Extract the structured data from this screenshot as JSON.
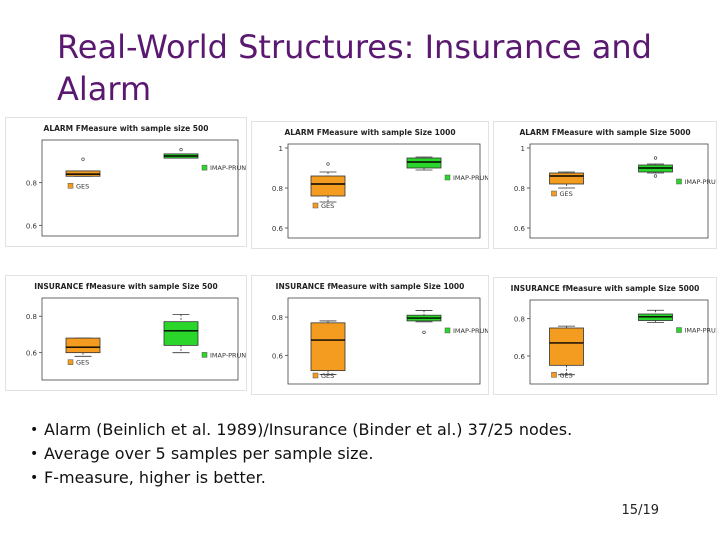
{
  "slide": {
    "title": "Real-World Structures: Insurance and Alarm",
    "bullets": [
      "Alarm (Beinlich et al. 1989)/Insurance (Binder et al.) 37/25 nodes.",
      "Average over 5 samples per sample size.",
      "F-measure, higher is better."
    ],
    "page_number": "15/19"
  },
  "colors": {
    "title": "#5a1870",
    "ges": "#f39c1f",
    "imap": "#2bd62b"
  },
  "chart_data": [
    {
      "type": "boxplot",
      "title": "ALARM FMeasure with sample size 500",
      "ytick_labels": [
        "0.8",
        "0.6"
      ],
      "ylim": [
        0.55,
        1.0
      ],
      "series": [
        {
          "name": "GES",
          "color": "#f39c1f",
          "q1": 0.83,
          "median": 0.84,
          "q3": 0.855,
          "whisker_low": 0.83,
          "whisker_high": 0.855,
          "outliers": [
            0.91
          ]
        },
        {
          "name": "IMAP-PRUNED",
          "color": "#2bd62b",
          "q1": 0.915,
          "median": 0.925,
          "q3": 0.935,
          "whisker_low": 0.915,
          "whisker_high": 0.935,
          "outliers": [
            0.955
          ]
        }
      ]
    },
    {
      "type": "boxplot",
      "title": "ALARM FMeasure with sample Size 1000",
      "ytick_labels": [
        "1",
        "0.8",
        "0.6"
      ],
      "ylim": [
        0.55,
        1.02
      ],
      "series": [
        {
          "name": "GES",
          "color": "#f39c1f",
          "q1": 0.76,
          "median": 0.82,
          "q3": 0.86,
          "whisker_low": 0.73,
          "whisker_high": 0.88,
          "outliers": [
            0.92
          ]
        },
        {
          "name": "IMAP-PRUNED",
          "color": "#2bd62b",
          "q1": 0.9,
          "median": 0.93,
          "q3": 0.95,
          "whisker_low": 0.89,
          "whisker_high": 0.955,
          "outliers": []
        }
      ]
    },
    {
      "type": "boxplot",
      "title": "ALARM FMeasure with sample Size 5000",
      "ytick_labels": [
        "1",
        "0.8",
        "0.6"
      ],
      "ylim": [
        0.55,
        1.02
      ],
      "series": [
        {
          "name": "GES",
          "color": "#f39c1f",
          "q1": 0.82,
          "median": 0.86,
          "q3": 0.875,
          "whisker_low": 0.8,
          "whisker_high": 0.88,
          "outliers": []
        },
        {
          "name": "IMAP-PRUNED",
          "color": "#2bd62b",
          "q1": 0.88,
          "median": 0.9,
          "q3": 0.915,
          "whisker_low": 0.875,
          "whisker_high": 0.92,
          "outliers": [
            0.95,
            0.86
          ]
        }
      ]
    },
    {
      "type": "boxplot",
      "title": "INSURANCE fMeasure with sample Size 500",
      "ytick_labels": [
        "0.8",
        "0.6"
      ],
      "ylim": [
        0.45,
        0.9
      ],
      "series": [
        {
          "name": "GES",
          "color": "#f39c1f",
          "q1": 0.6,
          "median": 0.63,
          "q3": 0.68,
          "whisker_low": 0.58,
          "whisker_high": 0.68,
          "outliers": []
        },
        {
          "name": "IMAP-PRUNED",
          "color": "#2bd62b",
          "q1": 0.64,
          "median": 0.72,
          "q3": 0.77,
          "whisker_low": 0.6,
          "whisker_high": 0.81,
          "outliers": []
        }
      ]
    },
    {
      "type": "boxplot",
      "title": "INSURANCE fMeasure with sample Size 1000",
      "ytick_labels": [
        "0.8",
        "0.6"
      ],
      "ylim": [
        0.45,
        0.9
      ],
      "series": [
        {
          "name": "GES",
          "color": "#f39c1f",
          "q1": 0.52,
          "median": 0.68,
          "q3": 0.77,
          "whisker_low": 0.5,
          "whisker_high": 0.78,
          "outliers": []
        },
        {
          "name": "IMAP-PRUNED",
          "color": "#2bd62b",
          "q1": 0.78,
          "median": 0.795,
          "q3": 0.81,
          "whisker_low": 0.775,
          "whisker_high": 0.835,
          "outliers": [
            0.72
          ]
        }
      ]
    },
    {
      "type": "boxplot",
      "title": "INSURANCE fMeasure with sample Size 5000",
      "ytick_labels": [
        "0.8",
        "0.6"
      ],
      "ylim": [
        0.45,
        0.9
      ],
      "series": [
        {
          "name": "GES",
          "color": "#f39c1f",
          "q1": 0.55,
          "median": 0.67,
          "q3": 0.75,
          "whisker_low": 0.5,
          "whisker_high": 0.76,
          "outliers": []
        },
        {
          "name": "IMAP-PRUNED",
          "color": "#2bd62b",
          "q1": 0.79,
          "median": 0.81,
          "q3": 0.825,
          "whisker_low": 0.78,
          "whisker_high": 0.845,
          "outliers": []
        }
      ]
    }
  ]
}
